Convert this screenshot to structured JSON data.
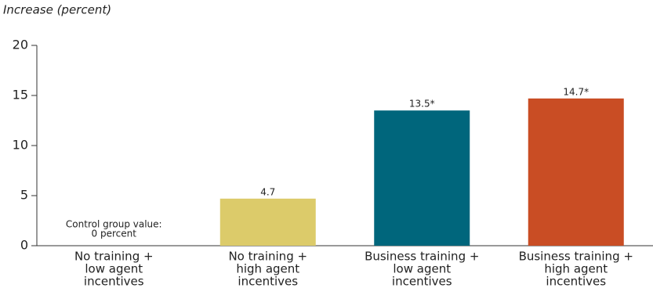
{
  "chart_data": {
    "type": "bar",
    "subtitle": "Increase (percent)",
    "categories": [
      [
        "No training +",
        "low agent",
        "incentives"
      ],
      [
        "No training +",
        "high agent",
        "incentives"
      ],
      [
        "Business training +",
        "low agent",
        "incentives"
      ],
      [
        "Business training +",
        "high agent",
        "incentives"
      ]
    ],
    "values": [
      0,
      4.7,
      13.5,
      14.7
    ],
    "value_labels": [
      null,
      "4.7",
      "13.5*",
      "14.7*"
    ],
    "colors": [
      "#cccccc",
      "#dccb6a",
      "#00667c",
      "#c94d24"
    ],
    "annotation": [
      "Control group value:",
      "0 percent"
    ],
    "ylim": [
      0,
      20
    ],
    "yticks": [
      0,
      5,
      10,
      15,
      20
    ],
    "grid": false
  }
}
